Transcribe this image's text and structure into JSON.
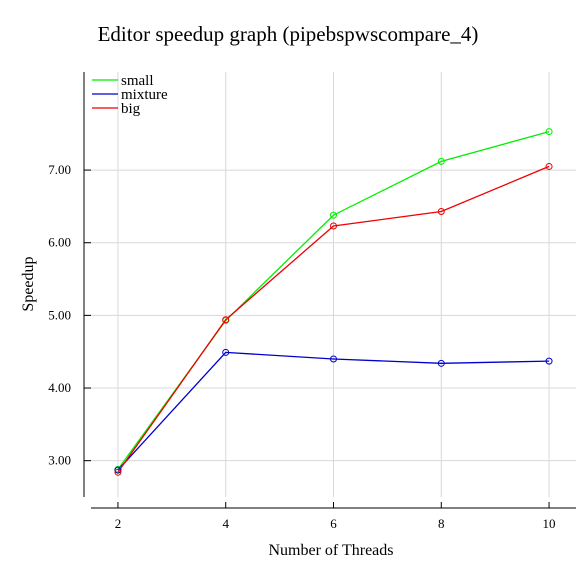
{
  "chart_data": {
    "type": "line",
    "title": "Editor speedup graph (pipebspwscompare_4)",
    "xlabel": "Number of Threads",
    "ylabel": "Speedup",
    "x": [
      2,
      4,
      6,
      8,
      10
    ],
    "xlim": [
      1.5,
      10.5
    ],
    "ylim": [
      2.5,
      8.35
    ],
    "xticks": [
      "2",
      "4",
      "6",
      "8",
      "10"
    ],
    "yticks": [
      "3.00",
      "4.00",
      "5.00",
      "6.00",
      "7.00"
    ],
    "ytick_values": [
      3,
      4,
      5,
      6,
      7
    ],
    "grid": true,
    "legend_position": "top-left",
    "series": [
      {
        "name": "small",
        "color": "#00ee00",
        "values": [
          2.88,
          4.93,
          6.38,
          7.12,
          7.53
        ]
      },
      {
        "name": "mixture",
        "color": "#0000cc",
        "values": [
          2.87,
          4.49,
          4.4,
          4.34,
          4.37
        ]
      },
      {
        "name": "big",
        "color": "#ee0000",
        "values": [
          2.84,
          4.94,
          6.23,
          6.43,
          7.05
        ]
      }
    ]
  }
}
